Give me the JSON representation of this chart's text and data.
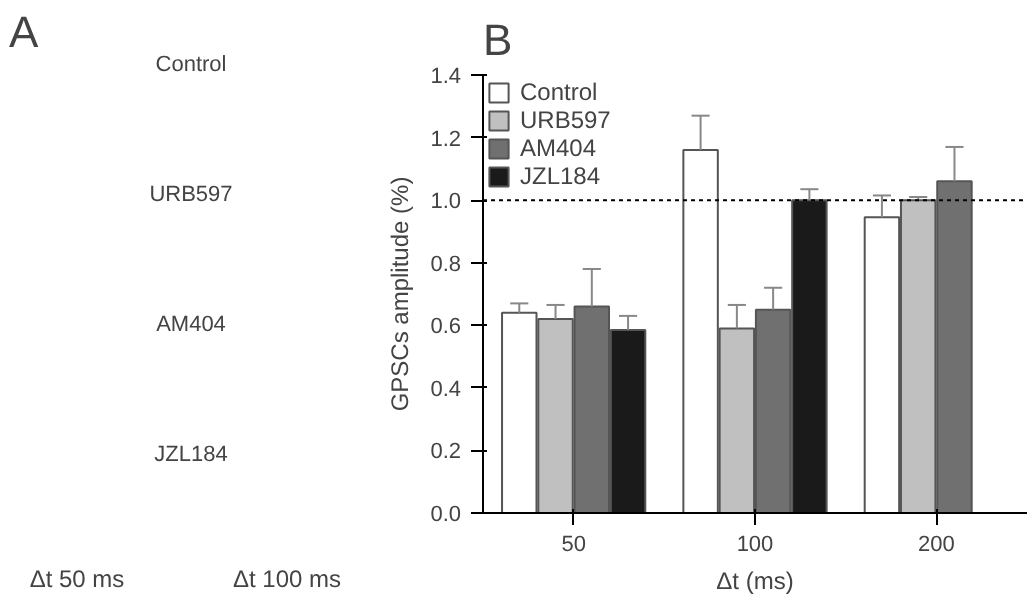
{
  "chart_data": [
    {
      "type": "other",
      "title": "A",
      "annotations": [
        "Control",
        "URB597",
        "AM404",
        "JZL184",
        "Δt 50 ms",
        "Δt 100 ms"
      ]
    },
    {
      "type": "bar",
      "title": "B",
      "xlabel": "Δt (ms)",
      "ylabel": "GPSCs amplitude (%)",
      "categories": [
        "50",
        "100",
        "200"
      ],
      "series": [
        {
          "name": "Control",
          "color": "#ffffff",
          "values": [
            0.64,
            1.16,
            0.945
          ],
          "errors": [
            [
              0.64,
              0.67
            ],
            [
              1.16,
              1.27
            ],
            [
              0.945,
              1.015
            ]
          ]
        },
        {
          "name": "URB597",
          "color": "#c0c0c0",
          "values": [
            0.62,
            0.59,
            1.0
          ],
          "errors": [
            [
              0.62,
              0.665
            ],
            [
              0.59,
              0.665
            ],
            [
              1.0,
              1.01
            ]
          ]
        },
        {
          "name": "AM404",
          "color": "#707070",
          "values": [
            0.66,
            0.65,
            1.06
          ],
          "errors": [
            [
              0.66,
              0.78
            ],
            [
              0.65,
              0.72
            ],
            [
              1.06,
              1.17
            ]
          ]
        },
        {
          "name": "JZL184",
          "color": "#1a1a1a",
          "values": [
            0.585,
            1.0,
            null
          ],
          "errors": [
            [
              0.585,
              0.63
            ],
            [
              1.0,
              1.035
            ],
            null
          ]
        }
      ],
      "ylim": [
        0,
        1.4
      ],
      "yticks": [
        {
          "value": 0,
          "label": "0.0"
        },
        0.2,
        0.4,
        0.6,
        0.8,
        {
          "value": 1,
          "label": "1.0"
        },
        1.2,
        1.4
      ],
      "ref_lines": [
        {
          "axis": "y",
          "value": 1.0,
          "line_style": "dashed",
          "color": "#000000"
        }
      ],
      "grid": false,
      "legend": "top left"
    }
  ]
}
